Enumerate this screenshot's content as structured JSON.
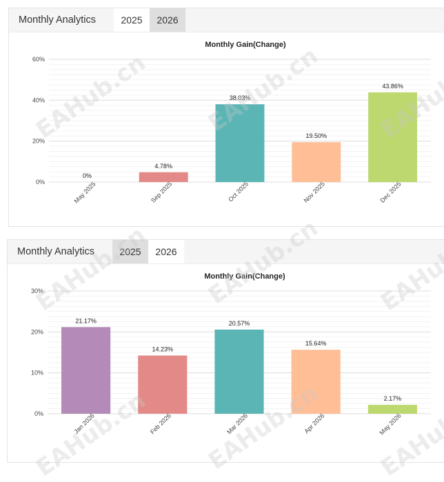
{
  "watermark": "EAHub.cn",
  "panels": [
    {
      "title": "Monthly Analytics",
      "tabs": [
        {
          "label": "2025",
          "active": true
        },
        {
          "label": "2026",
          "active": false
        }
      ],
      "chart_data": {
        "type": "bar",
        "title": "Monthly Gain(Change)",
        "categories": [
          "May 2025",
          "Sep 2025",
          "Oct 2025",
          "Nov 2025",
          "Dec 2025"
        ],
        "values": [
          0,
          4.78,
          38.03,
          19.5,
          43.86
        ],
        "data_labels": [
          "0%",
          "4.78%",
          "38.03%",
          "19.50%",
          "43.86%"
        ],
        "colors": [
          "#b48ab8",
          "#e38a88",
          "#5bb5b5",
          "#ffbe96",
          "#bdd86f"
        ],
        "ylim": [
          0,
          60
        ],
        "yticks": [
          0,
          20,
          40,
          60
        ],
        "ytick_labels": [
          "0%",
          "20%",
          "40%",
          "60%"
        ],
        "xlabel": "",
        "ylabel": "",
        "grid": true
      }
    },
    {
      "title": "Monthly Analytics",
      "tabs": [
        {
          "label": "2025",
          "active": false
        },
        {
          "label": "2026",
          "active": true
        }
      ],
      "chart_data": {
        "type": "bar",
        "title": "Monthly Gain(Change)",
        "categories": [
          "Jan 2026",
          "Feb 2026",
          "Mar 2026",
          "Apr 2026",
          "May 2026"
        ],
        "values": [
          21.17,
          14.23,
          20.57,
          15.64,
          2.17
        ],
        "data_labels": [
          "21.17%",
          "14.23%",
          "20.57%",
          "15.64%",
          "2.17%"
        ],
        "colors": [
          "#b48ab8",
          "#e38a88",
          "#5bb5b5",
          "#ffbe96",
          "#bdd86f"
        ],
        "ylim": [
          0,
          30
        ],
        "yticks": [
          0,
          10,
          20,
          30
        ],
        "ytick_labels": [
          "0%",
          "10%",
          "20%",
          "30%"
        ],
        "xlabel": "",
        "ylabel": "",
        "grid": true
      }
    }
  ]
}
